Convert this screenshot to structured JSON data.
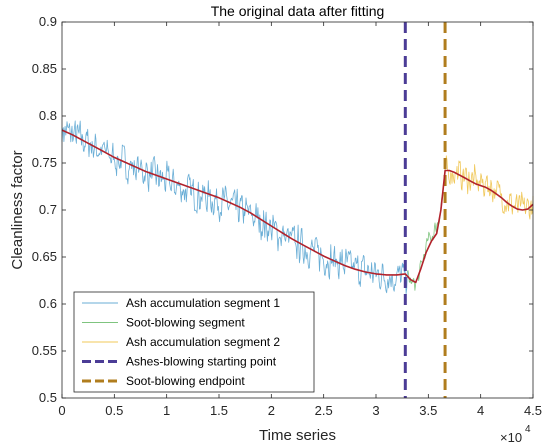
{
  "chart_data": {
    "type": "line",
    "title": "The original data after fitting",
    "xlabel": "Time series",
    "ylabel": "Cleanliness factor",
    "x_exponent_label": "×10",
    "x_exponent_power": "4",
    "xlim": [
      0,
      45000
    ],
    "ylim": [
      0.5,
      0.9
    ],
    "x_ticks": [
      0,
      5000,
      10000,
      15000,
      20000,
      25000,
      30000,
      35000,
      40000,
      45000
    ],
    "x_tick_labels": [
      "0",
      "0.5",
      "1",
      "1.5",
      "2",
      "2.5",
      "3",
      "3.5",
      "4",
      "4.5"
    ],
    "y_ticks": [
      0.5,
      0.55,
      0.6,
      0.65,
      0.7,
      0.75,
      0.8,
      0.85,
      0.9
    ],
    "y_tick_labels": [
      "0.5",
      "0.55",
      "0.6",
      "0.65",
      "0.7",
      "0.75",
      "0.8",
      "0.85",
      "0.9"
    ],
    "grid": false,
    "legend_position": "bottom-left",
    "series": [
      {
        "name": "Ash accumulation segment 1",
        "color": "#6aaed6",
        "x": [
          0,
          2000,
          5000,
          8000,
          10000,
          12000,
          15000,
          18000,
          20000,
          22000,
          25000,
          28000,
          30000,
          32000,
          33000
        ],
        "values": [
          0.785,
          0.775,
          0.755,
          0.74,
          0.73,
          0.72,
          0.71,
          0.695,
          0.68,
          0.667,
          0.65,
          0.638,
          0.632,
          0.628,
          0.63
        ]
      },
      {
        "name": "Soot-blowing segment",
        "color": "#7fc47f",
        "x": [
          33000,
          33500,
          34000,
          34500,
          35000,
          35500,
          36000,
          36600
        ],
        "values": [
          0.63,
          0.62,
          0.625,
          0.648,
          0.668,
          0.675,
          0.69,
          0.735
        ]
      },
      {
        "name": "Ash accumulation segment 2",
        "color": "#f0c85a",
        "x": [
          36600,
          37500,
          38500,
          39500,
          40500,
          41500,
          42500,
          43500,
          44500,
          45000
        ],
        "values": [
          0.742,
          0.74,
          0.735,
          0.73,
          0.728,
          0.72,
          0.71,
          0.702,
          0.702,
          0.705
        ]
      },
      {
        "name": "Ashes-blowing starting point",
        "color": "#4b3c96",
        "style": "dashed",
        "vline_x": 32800
      },
      {
        "name": "Soot-blowing endpoint",
        "color": "#b07d1e",
        "style": "dashed",
        "vline_x": 36600
      }
    ],
    "fitted_curve": {
      "color": "#b2222b",
      "x": [
        0,
        1000,
        2000,
        3000,
        4000,
        5000,
        6000,
        7000,
        8000,
        9000,
        10000,
        11000,
        12000,
        13000,
        14000,
        15000,
        16000,
        17000,
        18000,
        19000,
        20000,
        21000,
        22000,
        23000,
        24000,
        25000,
        26000,
        27000,
        28000,
        29000,
        30000,
        31000,
        32000,
        32800,
        33300,
        33800,
        34300,
        34800,
        35300,
        35800,
        36200,
        36600,
        37000,
        37500,
        38000,
        38500,
        39000,
        39500,
        40000,
        40500,
        41000,
        41500,
        42000,
        42500,
        43000,
        43500,
        44000,
        44500,
        45000
      ],
      "values": [
        0.785,
        0.78,
        0.774,
        0.768,
        0.762,
        0.756,
        0.751,
        0.746,
        0.741,
        0.737,
        0.733,
        0.729,
        0.725,
        0.721,
        0.717,
        0.713,
        0.708,
        0.703,
        0.697,
        0.69,
        0.683,
        0.676,
        0.669,
        0.663,
        0.657,
        0.651,
        0.646,
        0.641,
        0.637,
        0.634,
        0.632,
        0.631,
        0.631,
        0.632,
        0.626,
        0.623,
        0.638,
        0.655,
        0.667,
        0.675,
        0.7,
        0.742,
        0.742,
        0.74,
        0.737,
        0.734,
        0.731,
        0.728,
        0.726,
        0.724,
        0.721,
        0.717,
        0.713,
        0.708,
        0.704,
        0.701,
        0.7,
        0.701,
        0.706
      ]
    }
  }
}
